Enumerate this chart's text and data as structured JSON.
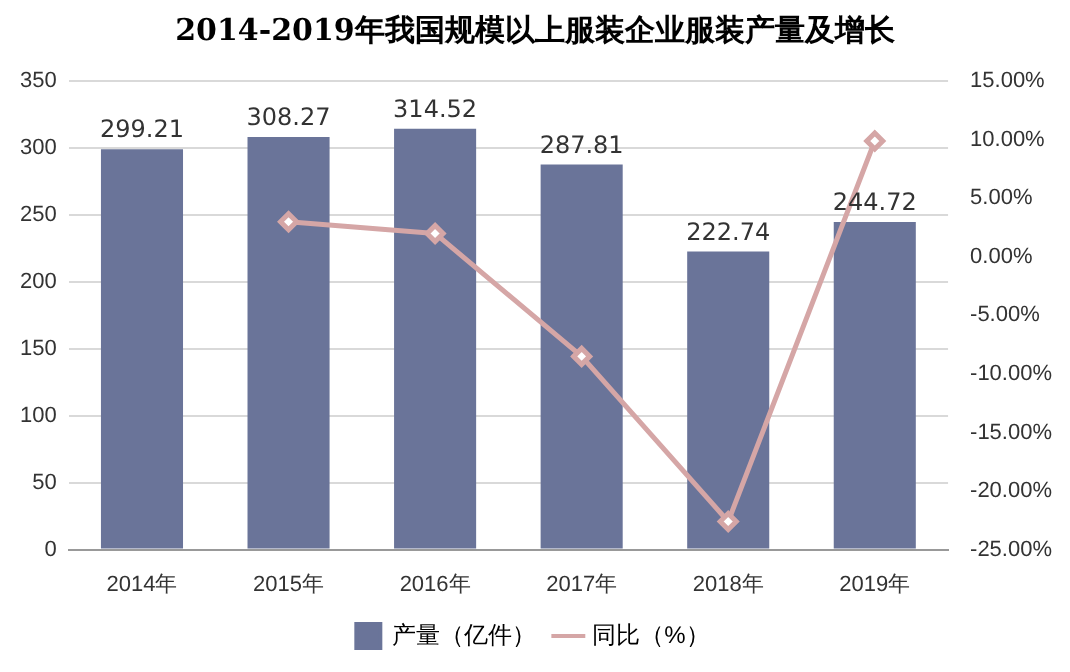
{
  "chart_data": {
    "type": "bar",
    "title": "2014-2019年我国规模以上服装企业服装产量及增长",
    "categories": [
      "2014年",
      "2015年",
      "2016年",
      "2017年",
      "2018年",
      "2019年"
    ],
    "series": [
      {
        "name": "产量（亿件）",
        "color": "#6a7499",
        "values": [
          299.21,
          308.27,
          314.52,
          287.81,
          222.74,
          244.72
        ],
        "value_labels": [
          "299.21",
          "308.27",
          "314.52",
          "287.81",
          "222.74",
          "244.72"
        ]
      },
      {
        "name": "同比（%）",
        "type": "line",
        "axis": "y2",
        "color": "#d5a6a6",
        "marker": "diamond",
        "values": [
          null,
          3.0,
          2.0,
          -8.5,
          -22.6,
          9.9
        ]
      }
    ],
    "ylim": [
      0,
      350
    ],
    "yticks": [
      0,
      50,
      100,
      150,
      200,
      250,
      300,
      350
    ],
    "y2lim": [
      -25,
      15
    ],
    "y2ticks": [
      {
        "value": -25,
        "label": "-25.00%"
      },
      {
        "value": -20,
        "label": "-20.00%"
      },
      {
        "value": -15,
        "label": "-15.00%"
      },
      {
        "value": -10,
        "label": "-10.00%"
      },
      {
        "value": -5,
        "label": "-5.00%"
      },
      {
        "value": 0,
        "label": "0.00%"
      },
      {
        "value": 5,
        "label": "5.00%"
      },
      {
        "value": 10,
        "label": "10.00%"
      },
      {
        "value": 15,
        "label": "15.00%"
      }
    ],
    "grid": "y",
    "legend": "bottom"
  }
}
